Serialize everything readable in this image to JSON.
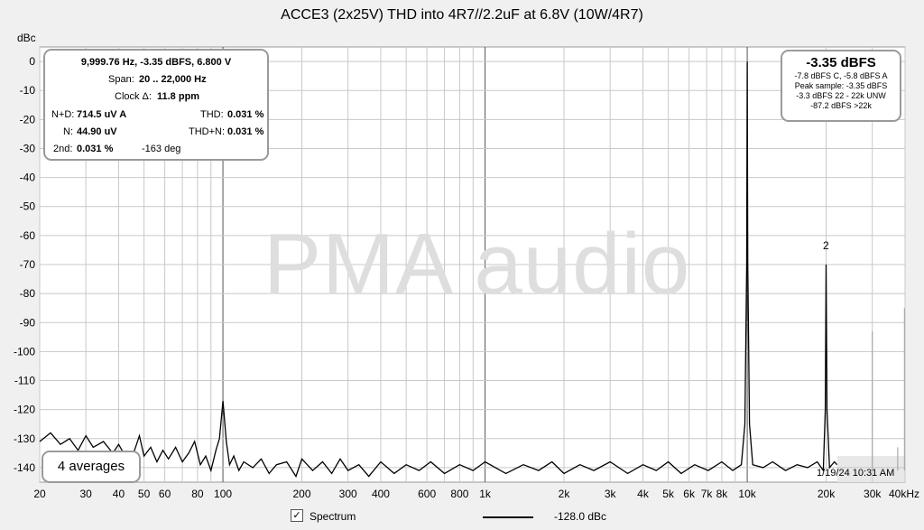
{
  "chart_data": {
    "type": "line",
    "title": "ACCE3 (2x25V) THD into 4R7//2.2uF at 6.8V (10W/4R7)",
    "ylabel": "dBc",
    "xlabel": "",
    "x_scale": "log",
    "xlim": [
      20,
      40000
    ],
    "ylim": [
      -145,
      5
    ],
    "y_ticks": [
      0,
      -10,
      -20,
      -30,
      -40,
      -50,
      -60,
      -70,
      -80,
      -90,
      -100,
      -110,
      -120,
      -130,
      -140
    ],
    "x_ticks": [
      {
        "v": 20,
        "label": "20"
      },
      {
        "v": 30,
        "label": "30"
      },
      {
        "v": 40,
        "label": "40"
      },
      {
        "v": 50,
        "label": "50"
      },
      {
        "v": 60,
        "label": "60"
      },
      {
        "v": 80,
        "label": "80"
      },
      {
        "v": 100,
        "label": "100"
      },
      {
        "v": 200,
        "label": "200"
      },
      {
        "v": 300,
        "label": "300"
      },
      {
        "v": 400,
        "label": "400"
      },
      {
        "v": 600,
        "label": "600"
      },
      {
        "v": 800,
        "label": "800"
      },
      {
        "v": 1000,
        "label": "1k"
      },
      {
        "v": 2000,
        "label": "2k"
      },
      {
        "v": 3000,
        "label": "3k"
      },
      {
        "v": 4000,
        "label": "4k"
      },
      {
        "v": 5000,
        "label": "5k"
      },
      {
        "v": 6000,
        "label": "6k"
      },
      {
        "v": 7000,
        "label": "7k"
      },
      {
        "v": 8000,
        "label": "8k"
      },
      {
        "v": 10000,
        "label": "10k"
      },
      {
        "v": 20000,
        "label": "20k"
      },
      {
        "v": 30000,
        "label": "30k"
      },
      {
        "v": 40000,
        "label": "40kHz"
      }
    ],
    "grid": true,
    "series": [
      {
        "name": "Spectrum",
        "color": "#000000",
        "points": [
          [
            20,
            -131
          ],
          [
            22,
            -128
          ],
          [
            24,
            -132
          ],
          [
            26,
            -130
          ],
          [
            28,
            -134
          ],
          [
            30,
            -129
          ],
          [
            32,
            -133
          ],
          [
            35,
            -131
          ],
          [
            38,
            -135
          ],
          [
            40,
            -132
          ],
          [
            43,
            -137
          ],
          [
            46,
            -134
          ],
          [
            48,
            -129
          ],
          [
            50,
            -136
          ],
          [
            53,
            -133
          ],
          [
            56,
            -138
          ],
          [
            59,
            -134
          ],
          [
            62,
            -137
          ],
          [
            66,
            -133
          ],
          [
            70,
            -138
          ],
          [
            74,
            -135
          ],
          [
            78,
            -131
          ],
          [
            82,
            -139
          ],
          [
            86,
            -136
          ],
          [
            90,
            -141
          ],
          [
            94,
            -134
          ],
          [
            97,
            -130
          ],
          [
            100,
            -117
          ],
          [
            103,
            -131
          ],
          [
            106,
            -139
          ],
          [
            110,
            -136
          ],
          [
            115,
            -141
          ],
          [
            120,
            -138
          ],
          [
            130,
            -140
          ],
          [
            140,
            -137
          ],
          [
            150,
            -142
          ],
          [
            160,
            -139
          ],
          [
            175,
            -138
          ],
          [
            190,
            -143
          ],
          [
            200,
            -137
          ],
          [
            220,
            -141
          ],
          [
            240,
            -138
          ],
          [
            260,
            -142
          ],
          [
            280,
            -137
          ],
          [
            300,
            -141
          ],
          [
            330,
            -139
          ],
          [
            360,
            -143
          ],
          [
            400,
            -138
          ],
          [
            450,
            -142
          ],
          [
            500,
            -139
          ],
          [
            560,
            -141
          ],
          [
            620,
            -138
          ],
          [
            700,
            -142
          ],
          [
            800,
            -139
          ],
          [
            900,
            -141
          ],
          [
            1000,
            -138
          ],
          [
            1200,
            -142
          ],
          [
            1400,
            -139
          ],
          [
            1600,
            -141
          ],
          [
            1800,
            -138
          ],
          [
            2000,
            -142
          ],
          [
            2300,
            -139
          ],
          [
            2600,
            -141
          ],
          [
            3000,
            -138
          ],
          [
            3500,
            -142
          ],
          [
            4000,
            -139
          ],
          [
            4500,
            -141
          ],
          [
            5000,
            -138
          ],
          [
            5600,
            -142
          ],
          [
            6300,
            -139
          ],
          [
            7100,
            -141
          ],
          [
            8000,
            -138
          ],
          [
            8800,
            -141
          ],
          [
            9500,
            -139
          ],
          [
            9800,
            -125
          ],
          [
            9950,
            -70
          ],
          [
            10000,
            0
          ],
          [
            10050,
            -70
          ],
          [
            10200,
            -125
          ],
          [
            10500,
            -139
          ],
          [
            11500,
            -140
          ],
          [
            12500,
            -138
          ],
          [
            14000,
            -141
          ],
          [
            15500,
            -139
          ],
          [
            17000,
            -140
          ],
          [
            18500,
            -138
          ],
          [
            19500,
            -141
          ],
          [
            19850,
            -120
          ],
          [
            20000,
            -70
          ],
          [
            20150,
            -120
          ],
          [
            20600,
            -140
          ],
          [
            21500,
            -138
          ],
          [
            22000,
            -139
          ]
        ]
      }
    ],
    "annotations": [
      {
        "x": 20000,
        "y": -70,
        "text": "2"
      }
    ],
    "legend": {
      "name": "Spectrum",
      "value": "-128.0 dBc",
      "checked": true,
      "placement": "bottom"
    }
  },
  "info_box": {
    "freq_line": "9,999.76 Hz, -3.35 dBFS, 6.800 V",
    "span_label": "Span:",
    "span_value": "20 .. 22,000 Hz",
    "clock_label": "Clock Δ:",
    "clock_value": "11.8 ppm",
    "nd_label": "N+D:",
    "nd_value": "714.5 uV A",
    "thd_label": "THD:",
    "thd_value": "0.031 %",
    "n_label": "N:",
    "n_value": "44.90 uV",
    "thdn_label": "THD+N:",
    "thdn_value": "0.031 %",
    "h2_label": "2nd:",
    "h2_value": "0.031 %",
    "h2_phase": "-163 deg"
  },
  "level_box": {
    "main": "-3.35 dBFS",
    "lines": [
      "-7.8 dBFS C, -5.8 dBFS A",
      "Peak sample: -3.35 dBFS",
      "-3.3 dBFS 22 - 22k UNW",
      "-87.2 dBFS >22k"
    ]
  },
  "averages": "4 averages",
  "watermark": "PMA audio",
  "timestamp": "1/19/24 10:31 AM",
  "check_mark": "✓"
}
